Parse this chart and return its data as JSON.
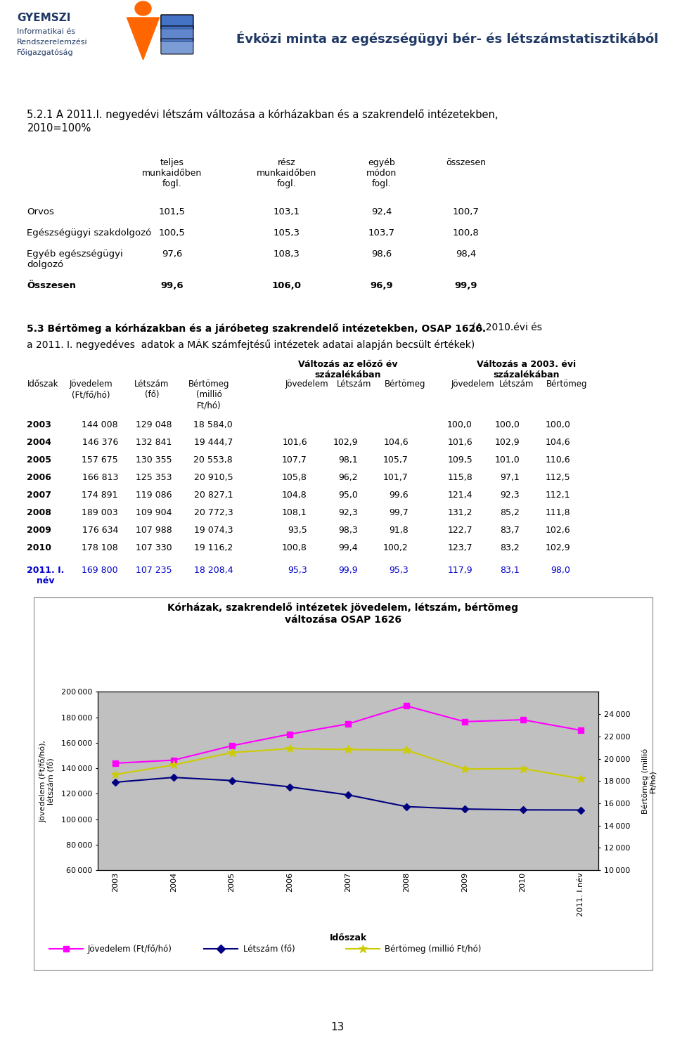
{
  "header_title": "Évközi minta az egészségügyi bér- és létszámstatisztikából",
  "section_title_line1": "5.2.1 A 2011.I. negyedévi létszám változása a kórházakban és a szakrendelő intézetekben,",
  "section_title_line2": "2010=100%",
  "table1_col_labels": [
    "teljes\nmunkaidőben\nfogl.",
    "rész\nmunkaidőben\nfogl.",
    "egyéb\nmódon\nfogl.",
    "összesen"
  ],
  "table1_rows": [
    [
      "Orvos",
      "101,5",
      "103,1",
      "92,4",
      "100,7"
    ],
    [
      "Egészségügyi szakdolgozó",
      "100,5",
      "105,3",
      "103,7",
      "100,8"
    ],
    [
      "Egyéb egészségügyi\ndolgozó",
      "97,6",
      "108,3",
      "98,6",
      "98,4"
    ],
    [
      "Összesen",
      "99,6",
      "106,0",
      "96,9",
      "99,9"
    ]
  ],
  "section2_title_bold": "5.3 Bértömeg a kórházakban és a járóbeteg szakrendelő intézetekben, OSAP 1626.",
  "section2_title_normal": " (A 2010.évi és",
  "section2_subtitle": "a 2011. I. negyedéves  adatok a MÁK számfejtésű intézetek adatai alapján becsült értékek)",
  "table2_group1": "Változás az előző év\nszázalékában",
  "table2_group2": "Változás a 2003. évi\nszázalékában",
  "table2_rows": [
    [
      "2003",
      "144 008",
      "129 048",
      "18 584,0",
      "",
      "",
      "",
      "100,0",
      "100,0",
      "100,0",
      false
    ],
    [
      "2004",
      "146 376",
      "132 841",
      "19 444,7",
      "101,6",
      "102,9",
      "104,6",
      "101,6",
      "102,9",
      "104,6",
      false
    ],
    [
      "2005",
      "157 675",
      "130 355",
      "20 553,8",
      "107,7",
      "98,1",
      "105,7",
      "109,5",
      "101,0",
      "110,6",
      false
    ],
    [
      "2006",
      "166 813",
      "125 353",
      "20 910,5",
      "105,8",
      "96,2",
      "101,7",
      "115,8",
      "97,1",
      "112,5",
      false
    ],
    [
      "2007",
      "174 891",
      "119 086",
      "20 827,1",
      "104,8",
      "95,0",
      "99,6",
      "121,4",
      "92,3",
      "112,1",
      false
    ],
    [
      "2008",
      "189 003",
      "109 904",
      "20 772,3",
      "108,1",
      "92,3",
      "99,7",
      "131,2",
      "85,2",
      "111,8",
      false
    ],
    [
      "2009",
      "176 634",
      "107 988",
      "19 074,3",
      "93,5",
      "98,3",
      "91,8",
      "122,7",
      "83,7",
      "102,6",
      false
    ],
    [
      "2010",
      "178 108",
      "107 330",
      "19 116,2",
      "100,8",
      "99,4",
      "100,2",
      "123,7",
      "83,2",
      "102,9",
      false
    ],
    [
      "2011. I.\nnév",
      "169 800",
      "107 235",
      "18 208,4",
      "95,3",
      "99,9",
      "95,3",
      "117,9",
      "83,1",
      "98,0",
      true
    ]
  ],
  "chart_title": "Kórházak, szakrendelő intézetek jövedelem, létszám, bértömeg\nváltozása OSAP 1626",
  "chart_xlabel": "Időszak",
  "chart_ylabel_left": "Jövedelem (Ft/fő/hó),\nlétszám (fő)",
  "chart_ylabel_right": "Bértömeg (millió\nFt/hó)",
  "x_labels": [
    "2003",
    "2004",
    "2005",
    "2006",
    "2007",
    "2008",
    "2009",
    "2010",
    "2011. I.név"
  ],
  "jovedelem": [
    144008,
    146376,
    157675,
    166813,
    174891,
    189003,
    176634,
    178108,
    169800
  ],
  "letszam": [
    129048,
    132841,
    130355,
    125353,
    119086,
    109904,
    107988,
    107330,
    107235
  ],
  "bertomeg": [
    18584.0,
    19444.7,
    20553.8,
    20910.5,
    20827.1,
    20772.3,
    19074.3,
    19116.2,
    18208.4
  ],
  "left_ylim": [
    60000,
    200000
  ],
  "left_yticks": [
    60000,
    80000,
    100000,
    120000,
    140000,
    160000,
    180000,
    200000
  ],
  "right_ylim": [
    10000,
    26000
  ],
  "right_yticks": [
    10000,
    12000,
    14000,
    16000,
    18000,
    20000,
    22000,
    24000
  ],
  "jovedelem_color": "#FF00FF",
  "letszam_color": "#000080",
  "bertomeg_color": "#CCCC00",
  "chart_bg_color": "#C0C0C0",
  "page_bg_color": "#FFFFFF",
  "footer_page": "13",
  "blue_highlight_color": "#0000CC",
  "header_bar_color1": "#ADD8E6",
  "header_bar_color2": "#4472C4",
  "header_bar_color3": "#1F3864",
  "header_text_color": "#1F3864",
  "gyemszi_color": "#1F3864",
  "dark_red": "#8B0000",
  "footer_bar_color": "#BDD7EE"
}
